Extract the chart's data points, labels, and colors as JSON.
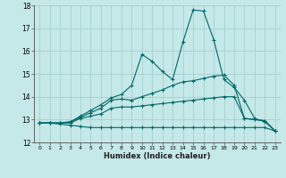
{
  "xlabel": "Humidex (Indice chaleur)",
  "bg_color": "#c5e8e8",
  "grid_color": "#a8d0d0",
  "line_color": "#006868",
  "xlim": [
    -0.5,
    23.5
  ],
  "ylim": [
    12,
    18
  ],
  "yticks": [
    12,
    13,
    14,
    15,
    16,
    17,
    18
  ],
  "xticks": [
    0,
    1,
    2,
    3,
    4,
    5,
    6,
    7,
    8,
    9,
    10,
    11,
    12,
    13,
    14,
    15,
    16,
    17,
    18,
    19,
    20,
    21,
    22,
    23
  ],
  "series": [
    [
      12.85,
      12.85,
      12.8,
      12.75,
      12.7,
      12.65,
      12.65,
      12.65,
      12.65,
      12.65,
      12.65,
      12.65,
      12.65,
      12.65,
      12.65,
      12.65,
      12.65,
      12.65,
      12.65,
      12.65,
      12.65,
      12.65,
      12.65,
      12.5
    ],
    [
      12.85,
      12.85,
      12.85,
      12.85,
      13.05,
      13.15,
      13.25,
      13.5,
      13.55,
      13.55,
      13.6,
      13.65,
      13.7,
      13.75,
      13.8,
      13.85,
      13.9,
      13.95,
      14.0,
      14.0,
      13.05,
      13.0,
      12.95,
      12.5
    ],
    [
      12.85,
      12.85,
      12.85,
      12.9,
      13.1,
      13.3,
      13.5,
      13.85,
      13.9,
      13.85,
      14.0,
      14.15,
      14.3,
      14.5,
      14.65,
      14.7,
      14.8,
      14.9,
      14.95,
      14.5,
      13.05,
      13.0,
      12.95,
      12.5
    ],
    [
      12.85,
      12.85,
      12.85,
      12.9,
      13.15,
      13.4,
      13.65,
      13.95,
      14.1,
      14.5,
      15.85,
      15.55,
      15.1,
      14.75,
      16.4,
      17.8,
      17.75,
      16.5,
      14.75,
      14.4,
      13.85,
      13.05,
      12.9,
      12.5
    ]
  ]
}
